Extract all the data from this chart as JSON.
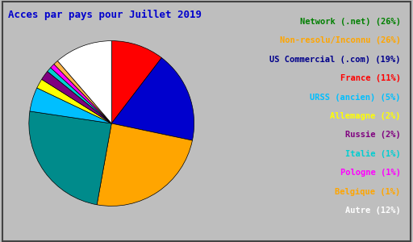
{
  "title": "Acces par pays pour Juillet 2019",
  "percentages": [
    26,
    12,
    1,
    1,
    1,
    2,
    2,
    5,
    11,
    19,
    26
  ],
  "pie_colors": [
    "#008B8B",
    "#FFFFFF",
    "#FFB6C1",
    "#FF00FF",
    "#800080",
    "#FFFF00",
    "#00BFFF",
    "#00BFFF",
    "#FF0000",
    "#0000CD",
    "#FFA500"
  ],
  "legend_labels": [
    "Network (.net) (26%)",
    "Non-resolu/Inconnu (26%)",
    "US Commercial (.com) (19%)",
    "France (11%)",
    "URSS (ancien) (5%)",
    "Allemagne (2%)",
    "Russie (2%)",
    "Italie (1%)",
    "Pologne (1%)",
    "Belgique (1%)",
    "Autre (12%)"
  ],
  "legend_text_colors": [
    "#008000",
    "#FFA500",
    "#00008B",
    "#FF0000",
    "#00BFFF",
    "#FFFF00",
    "#800080",
    "#00CED1",
    "#FF00FF",
    "#FFA500",
    "#FFFFFF"
  ],
  "background_color": "#BEBEBE",
  "title_color": "#0000CD",
  "title_fontsize": 9,
  "legend_fontsize": 7.5,
  "startangle": 90
}
